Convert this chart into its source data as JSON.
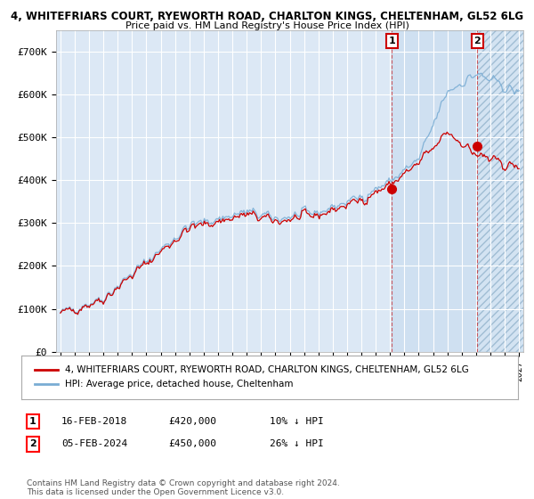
{
  "title_line1": "4, WHITEFRIARS COURT, RYEWORTH ROAD, CHARLTON KINGS, CHELTENHAM, GL52 6LG",
  "title_line2": "Price paid vs. HM Land Registry's House Price Index (HPI)",
  "ylim": [
    0,
    750000
  ],
  "yticks": [
    0,
    100000,
    200000,
    300000,
    400000,
    500000,
    600000,
    700000
  ],
  "ytick_labels": [
    "£0",
    "£100K",
    "£200K",
    "£300K",
    "£400K",
    "£500K",
    "£600K",
    "£700K"
  ],
  "hpi_color": "#7aadd4",
  "price_color": "#cc0000",
  "marker_color": "#cc0000",
  "marker_box_color": "#cc0000",
  "sale1_date": "16-FEB-2018",
  "sale1_price": 420000,
  "sale1_year": 2018.12,
  "sale2_date": "05-FEB-2024",
  "sale2_price": 450000,
  "sale2_year": 2024.09,
  "legend_property": "4, WHITEFRIARS COURT, RYEWORTH ROAD, CHARLTON KINGS, CHELTENHAM, GL52 6LG",
  "legend_hpi": "HPI: Average price, detached house, Cheltenham",
  "footnote": "Contains HM Land Registry data © Crown copyright and database right 2024.\nThis data is licensed under the Open Government Licence v3.0.",
  "background_color": "#ffffff",
  "plot_bg_color": "#dce8f5",
  "grid_color": "#ffffff",
  "highlight_color": "#ccdff0",
  "hatch_color": "#b8cfe0",
  "xstart_year": 1995,
  "xend_year": 2027,
  "sale1_hpi_pct": "10% ↓ HPI",
  "sale2_hpi_pct": "26% ↓ HPI"
}
